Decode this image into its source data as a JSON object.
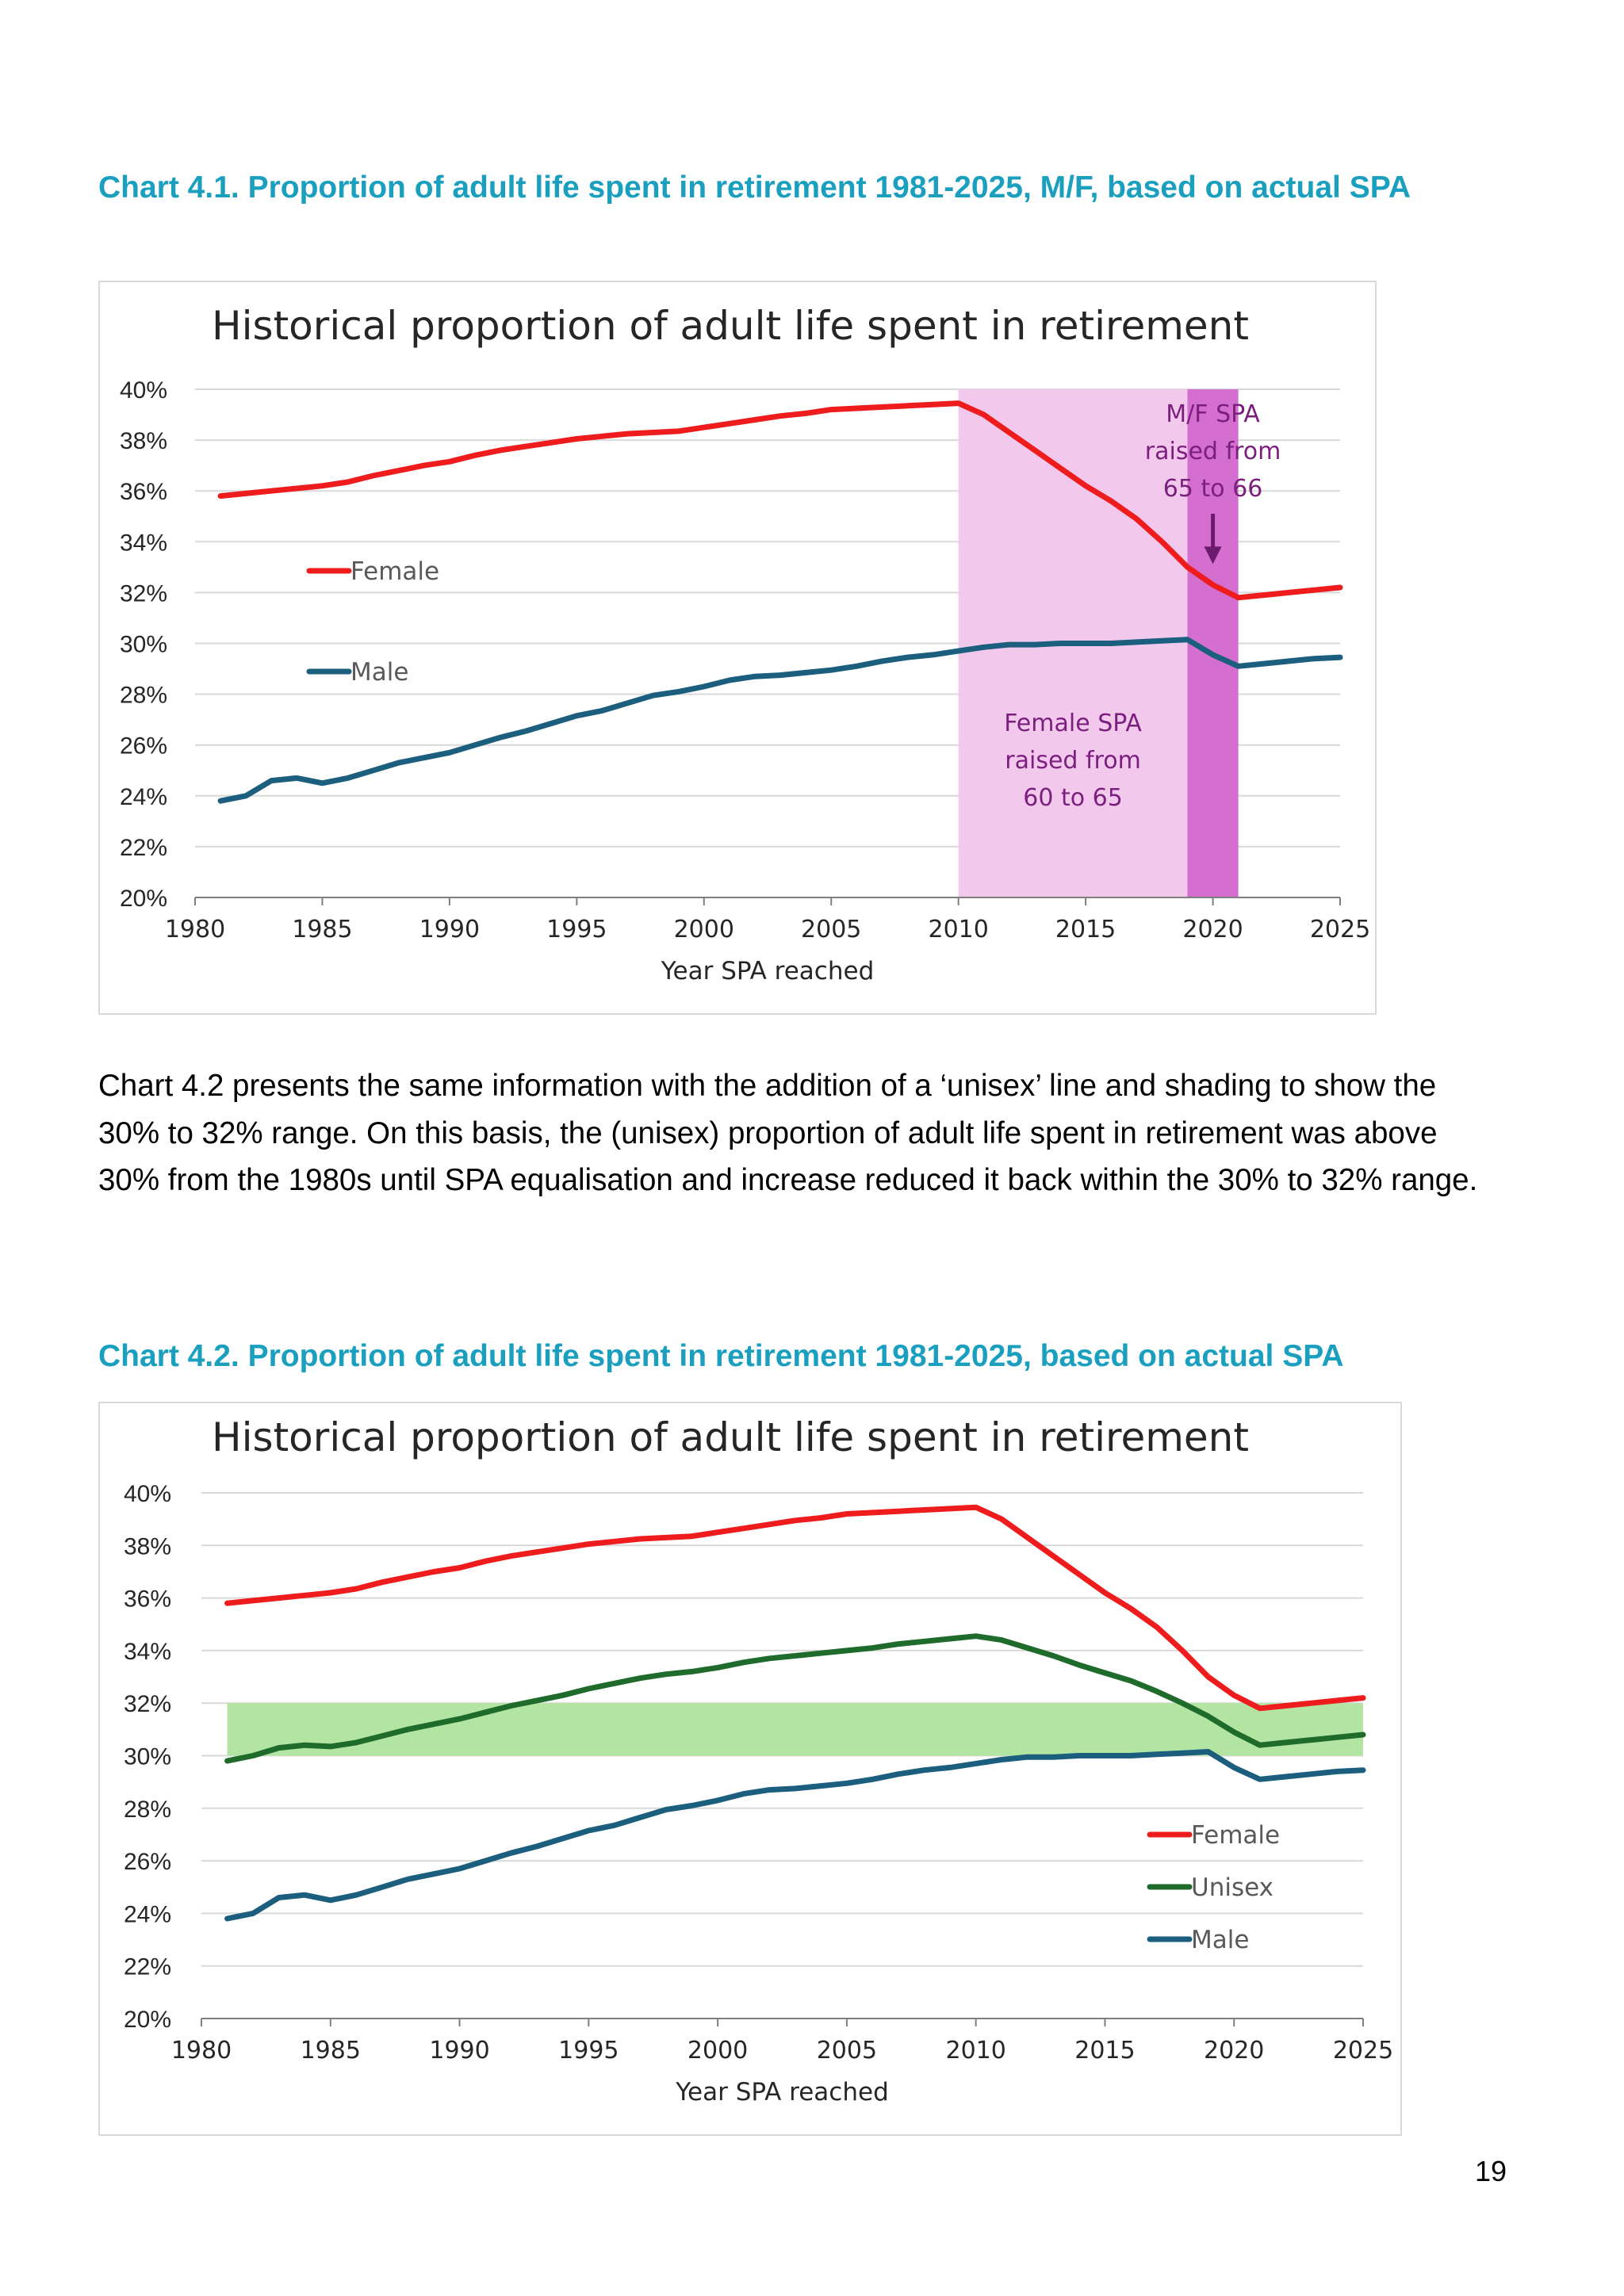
{
  "page": {
    "heading1": "Chart 4.1. Proportion of adult life spent in retirement 1981-2025, M/F, based on actual SPA",
    "paragraph": "Chart 4.2 presents the same information with the addition of a ‘unisex’ line and shading to show the 30% to 32% range. On this basis, the (unisex) proportion of adult life spent in retirement was above 30% from the 1980s until SPA equalisation and increase reduced it back within the 30% to 32% range.",
    "heading2": "Chart 4.2. Proportion of adult life spent in retirement 1981-2025, based on actual SPA",
    "page_number": "19"
  },
  "chart_data": [
    {
      "type": "line",
      "title": "Historical proportion of adult life spent in retirement",
      "xlabel": "Year SPA reached",
      "ylabel": "",
      "xlim": [
        1980,
        2025
      ],
      "ylim": [
        20,
        40
      ],
      "xticks": [
        1980,
        1985,
        1990,
        1995,
        2000,
        2005,
        2010,
        2015,
        2020,
        2025
      ],
      "yticks": [
        20,
        22,
        24,
        26,
        28,
        30,
        32,
        34,
        36,
        38,
        40
      ],
      "ytick_suffix": "%",
      "grid": true,
      "legend_position": "inline-left",
      "colors": {
        "Female": "#ee1c1c",
        "Male": "#1b5e7e"
      },
      "shaded_regions": [
        {
          "x_start": 2010,
          "x_end": 2019,
          "color": "#f2c9ec"
        },
        {
          "x_start": 2019,
          "x_end": 2021,
          "color": "#d46fd0"
        }
      ],
      "annotations": [
        {
          "lines": [
            "M/F SPA",
            "raised from",
            "65 to 66"
          ],
          "x": 2020,
          "arrow_to_y": 33.0
        },
        {
          "lines": [
            "Female SPA",
            "raised from",
            "60 to 65"
          ],
          "x": 2014.5
        }
      ],
      "x": [
        1981,
        1982,
        1983,
        1984,
        1985,
        1986,
        1987,
        1988,
        1989,
        1990,
        1991,
        1992,
        1993,
        1994,
        1995,
        1996,
        1997,
        1998,
        1999,
        2000,
        2001,
        2002,
        2003,
        2004,
        2005,
        2006,
        2007,
        2008,
        2009,
        2010,
        2011,
        2012,
        2013,
        2014,
        2015,
        2016,
        2017,
        2018,
        2019,
        2020,
        2021,
        2022,
        2023,
        2024,
        2025
      ],
      "series": [
        {
          "name": "Female",
          "values": [
            35.8,
            35.9,
            36.0,
            36.1,
            36.2,
            36.35,
            36.6,
            36.8,
            37.0,
            37.15,
            37.4,
            37.6,
            37.75,
            37.9,
            38.05,
            38.15,
            38.25,
            38.3,
            38.35,
            38.5,
            38.65,
            38.8,
            38.95,
            39.05,
            39.2,
            39.25,
            39.3,
            39.35,
            39.4,
            39.45,
            39.0,
            38.3,
            37.6,
            36.9,
            36.2,
            35.6,
            34.9,
            34.0,
            33.0,
            32.3,
            31.8,
            31.9,
            32.0,
            32.1,
            32.2
          ]
        },
        {
          "name": "Male",
          "values": [
            23.8,
            24.0,
            24.6,
            24.7,
            24.5,
            24.7,
            25.0,
            25.3,
            25.5,
            25.7,
            26.0,
            26.3,
            26.55,
            26.85,
            27.15,
            27.35,
            27.65,
            27.95,
            28.1,
            28.3,
            28.55,
            28.7,
            28.75,
            28.85,
            28.95,
            29.1,
            29.3,
            29.45,
            29.55,
            29.7,
            29.85,
            29.95,
            29.95,
            30.0,
            30.0,
            30.0,
            30.05,
            30.1,
            30.15,
            29.55,
            29.1,
            29.2,
            29.3,
            29.4,
            29.45
          ]
        }
      ]
    },
    {
      "type": "line",
      "title": "Historical proportion of adult life spent in retirement",
      "xlabel": "Year SPA reached",
      "ylabel": "",
      "xlim": [
        1980,
        2025
      ],
      "ylim": [
        20,
        40
      ],
      "xticks": [
        1980,
        1985,
        1990,
        1995,
        2000,
        2005,
        2010,
        2015,
        2020,
        2025
      ],
      "yticks": [
        20,
        22,
        24,
        26,
        28,
        30,
        32,
        34,
        36,
        38,
        40
      ],
      "ytick_suffix": "%",
      "grid": true,
      "legend_position": "bottom-right",
      "colors": {
        "Female": "#ee1c1c",
        "Unisex": "#1f6b2b",
        "Male": "#1b5e7e",
        "band": "#b3e5a2"
      },
      "shaded_band": {
        "y_low": 30,
        "y_high": 32,
        "x_start": 1981,
        "x_end": 2025
      },
      "x": [
        1981,
        1982,
        1983,
        1984,
        1985,
        1986,
        1987,
        1988,
        1989,
        1990,
        1991,
        1992,
        1993,
        1994,
        1995,
        1996,
        1997,
        1998,
        1999,
        2000,
        2001,
        2002,
        2003,
        2004,
        2005,
        2006,
        2007,
        2008,
        2009,
        2010,
        2011,
        2012,
        2013,
        2014,
        2015,
        2016,
        2017,
        2018,
        2019,
        2020,
        2021,
        2022,
        2023,
        2024,
        2025
      ],
      "series": [
        {
          "name": "Female",
          "values": [
            35.8,
            35.9,
            36.0,
            36.1,
            36.2,
            36.35,
            36.6,
            36.8,
            37.0,
            37.15,
            37.4,
            37.6,
            37.75,
            37.9,
            38.05,
            38.15,
            38.25,
            38.3,
            38.35,
            38.5,
            38.65,
            38.8,
            38.95,
            39.05,
            39.2,
            39.25,
            39.3,
            39.35,
            39.4,
            39.45,
            39.0,
            38.3,
            37.6,
            36.9,
            36.2,
            35.6,
            34.9,
            34.0,
            33.0,
            32.3,
            31.8,
            31.9,
            32.0,
            32.1,
            32.2
          ]
        },
        {
          "name": "Unisex",
          "values": [
            29.8,
            30.0,
            30.3,
            30.4,
            30.35,
            30.5,
            30.75,
            31.0,
            31.2,
            31.4,
            31.65,
            31.9,
            32.1,
            32.3,
            32.55,
            32.75,
            32.95,
            33.1,
            33.2,
            33.35,
            33.55,
            33.7,
            33.8,
            33.9,
            34.0,
            34.1,
            34.25,
            34.35,
            34.45,
            34.55,
            34.4,
            34.1,
            33.8,
            33.45,
            33.15,
            32.85,
            32.45,
            32.0,
            31.5,
            30.9,
            30.4,
            30.5,
            30.6,
            30.7,
            30.8
          ]
        },
        {
          "name": "Male",
          "values": [
            23.8,
            24.0,
            24.6,
            24.7,
            24.5,
            24.7,
            25.0,
            25.3,
            25.5,
            25.7,
            26.0,
            26.3,
            26.55,
            26.85,
            27.15,
            27.35,
            27.65,
            27.95,
            28.1,
            28.3,
            28.55,
            28.7,
            28.75,
            28.85,
            28.95,
            29.1,
            29.3,
            29.45,
            29.55,
            29.7,
            29.85,
            29.95,
            29.95,
            30.0,
            30.0,
            30.0,
            30.05,
            30.1,
            30.15,
            29.55,
            29.1,
            29.2,
            29.3,
            29.4,
            29.45
          ]
        }
      ]
    }
  ]
}
